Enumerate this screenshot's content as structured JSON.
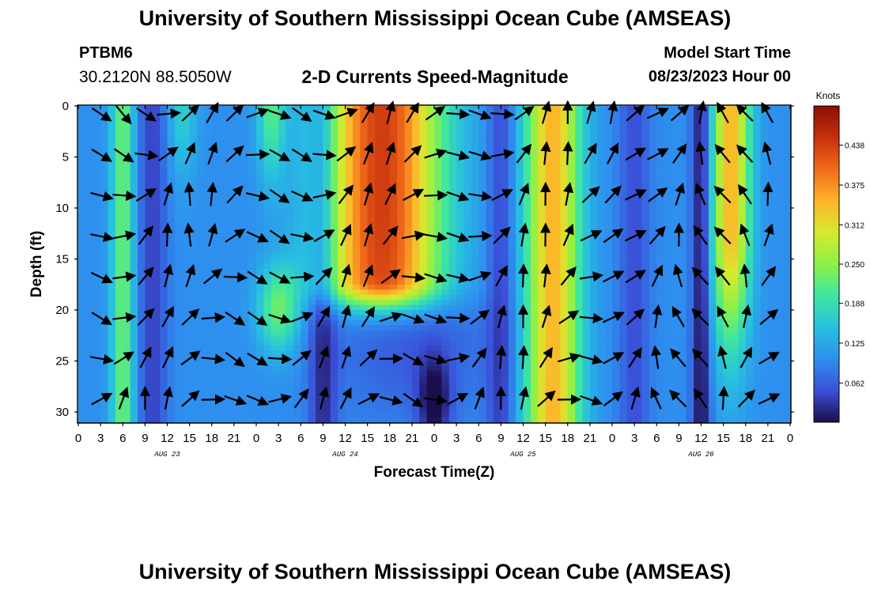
{
  "header": {
    "title": "University of Southern Mississippi Ocean Cube (AMSEAS)",
    "station_name": "PTBM6",
    "station_coords": "30.2120N  88.5050W",
    "plot_title": "2-D Currents Speed-Magnitude",
    "model_start_label": "Model Start Time",
    "model_start_value": "08/23/2023 Hour 00"
  },
  "footer": {
    "title": "University of Southern Mississippi Ocean Cube (AMSEAS)"
  },
  "chart_data": {
    "type": "heatmap",
    "title": "2-D Currents Speed-Magnitude",
    "xlabel": "Forecast Time(Z)",
    "ylabel": "Depth (ft)",
    "x_ticks": [
      "0",
      "3",
      "6",
      "9",
      "12",
      "15",
      "18",
      "21",
      "0",
      "3",
      "6",
      "9",
      "12",
      "15",
      "18",
      "21",
      "0",
      "3",
      "6",
      "9",
      "12",
      "15",
      "18",
      "21",
      "0",
      "3",
      "6",
      "9",
      "12",
      "15",
      "18",
      "21",
      "0"
    ],
    "day_labels": [
      "AUG 23",
      "AUG 24",
      "AUG 25",
      "AUG 26"
    ],
    "y_ticks": [
      0,
      5,
      10,
      15,
      20,
      25,
      30
    ],
    "ylim": [
      31,
      0
    ],
    "hours_range": [
      0,
      96
    ],
    "colorbar": {
      "label": "Knots",
      "ticks": [
        "0.438",
        "0.375",
        "0.312",
        "0.250",
        "0.188",
        "0.125",
        "0.062"
      ],
      "tick_values": [
        0.438,
        0.375,
        0.312,
        0.25,
        0.188,
        0.125,
        0.062
      ],
      "range": [
        0,
        0.5
      ],
      "colors": [
        "#1a0f4a",
        "#3b4fd8",
        "#2e8fef",
        "#27c0e0",
        "#3ee6a0",
        "#8cf048",
        "#d6ea2e",
        "#ffb42a",
        "#f06a1a",
        "#c8300e",
        "#8a0e05"
      ]
    },
    "vectors": {
      "hours": [
        0,
        3,
        6,
        9,
        12,
        15,
        18,
        21,
        24,
        27,
        30,
        33,
        36,
        39,
        42,
        45,
        48,
        51,
        54,
        57,
        60,
        63,
        66,
        69,
        72,
        75,
        78,
        81,
        84,
        87,
        90,
        93,
        96
      ],
      "depths_ft": [
        0,
        4,
        8,
        12,
        16,
        20,
        24,
        28
      ]
    }
  }
}
